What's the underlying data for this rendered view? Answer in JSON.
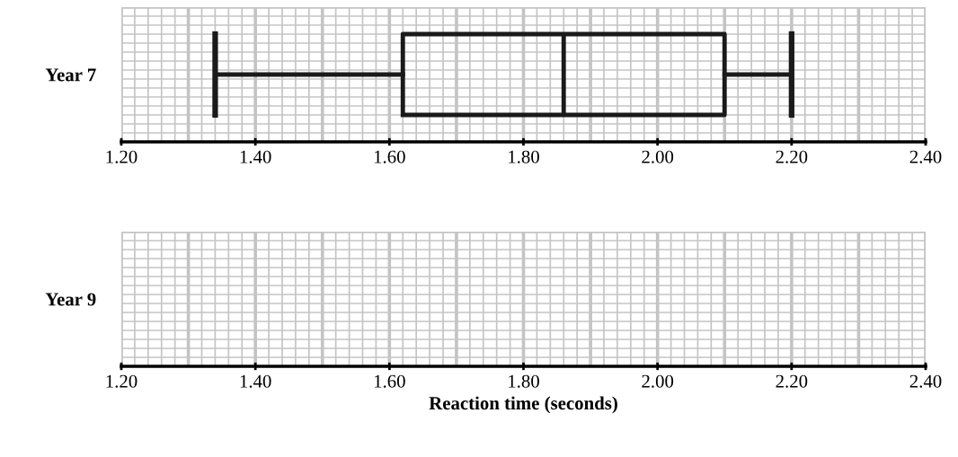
{
  "chart_data": [
    {
      "type": "box",
      "orientation": "horizontal",
      "categories": [
        "Year 7"
      ],
      "grid": true,
      "boxes": [
        {
          "low": 1.34,
          "q1": 1.62,
          "median": 1.86,
          "q3": 2.1,
          "high": 2.2
        }
      ],
      "xlim": [
        1.2,
        2.4
      ],
      "xticks": [
        {
          "value": 1.2,
          "label": "1.20"
        },
        {
          "value": 1.4,
          "label": "1.40"
        },
        {
          "value": 1.6,
          "label": "1.60"
        },
        {
          "value": 1.8,
          "label": "1.80"
        },
        {
          "value": 2.0,
          "label": "2.00"
        },
        {
          "value": 2.2,
          "label": "2.20"
        },
        {
          "value": 2.4,
          "label": "2.40"
        }
      ]
    },
    {
      "type": "box",
      "orientation": "horizontal",
      "categories": [
        "Year 9"
      ],
      "grid": true,
      "boxes": [
        null
      ],
      "xlabel": "Reaction time (seconds)",
      "xlim": [
        1.2,
        2.4
      ],
      "xticks": [
        {
          "value": 1.2,
          "label": "1.20"
        },
        {
          "value": 1.4,
          "label": "1.40"
        },
        {
          "value": 1.6,
          "label": "1.60"
        },
        {
          "value": 1.8,
          "label": "1.80"
        },
        {
          "value": 2.0,
          "label": "2.00"
        },
        {
          "value": 2.2,
          "label": "2.20"
        },
        {
          "value": 2.4,
          "label": "2.40"
        }
      ]
    }
  ]
}
